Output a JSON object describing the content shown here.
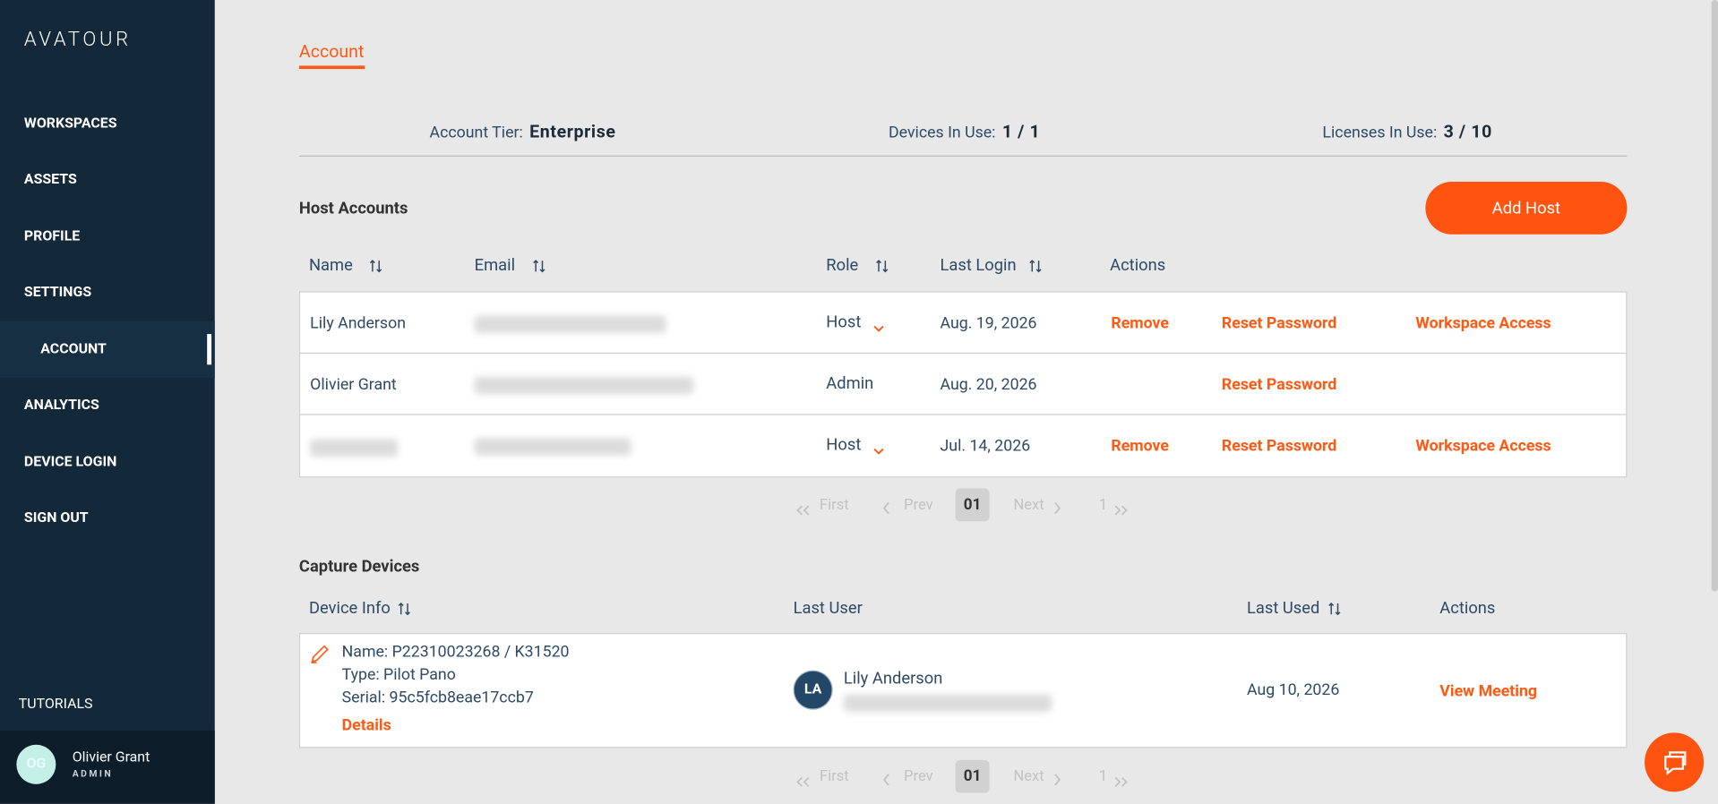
{
  "sidebar": {
    "logo": "AVATOUR",
    "nav": [
      "WORKSPACES",
      "ASSETS",
      "PROFILE",
      "SETTINGS",
      "ACCOUNT",
      "ANALYTICS",
      "DEVICE LOGIN",
      "SIGN OUT"
    ],
    "tutorials": "TUTORIALS",
    "user": {
      "initials": "OG",
      "name": "Olivier Grant",
      "role": "ADMIN"
    }
  },
  "tab": "Account",
  "stats": [
    {
      "label": "Account Tier:",
      "value": "Enterprise"
    },
    {
      "label": "Devices In Use:",
      "value": "1 / 1"
    },
    {
      "label": "Licenses In Use:",
      "value": "3 / 10"
    }
  ],
  "hosts": {
    "title": "Host Accounts",
    "add_button": "Add Host",
    "columns": [
      "Name",
      "Email",
      "Role",
      "Last Login",
      "Actions"
    ],
    "rows": [
      {
        "name": "Lily Anderson",
        "role": "Host",
        "last_login": "Aug. 19, 2026",
        "actions": [
          "Remove",
          "Reset Password",
          "Workspace Access"
        ]
      },
      {
        "name": "Olivier Grant",
        "role": "Admin",
        "last_login": "Aug. 20, 2026",
        "actions": [
          "Reset Password"
        ]
      },
      {
        "role": "Host",
        "last_login": "Jul. 14, 2026",
        "actions": [
          "Remove",
          "Reset Password",
          "Workspace Access"
        ]
      }
    ],
    "pagination": {
      "first": "First",
      "prev": "Prev",
      "page": "01",
      "next": "Next",
      "last": "1"
    }
  },
  "devices": {
    "title": "Capture Devices",
    "columns": [
      "Device Info",
      "Last User",
      "Last Used",
      "Actions"
    ],
    "rows": [
      {
        "name": "Name: P22310023268 / K31520",
        "type": "Type: Pilot Pano",
        "serial": "Serial: 95c5fcb8eae17ccb7",
        "details": "Details",
        "user_initials": "LA",
        "user_name": "Lily Anderson",
        "last_used": "Aug 10, 2026",
        "action": "View Meeting"
      }
    ],
    "pagination": {
      "first": "First",
      "prev": "Prev",
      "page": "01",
      "next": "Next",
      "last": "1"
    }
  }
}
